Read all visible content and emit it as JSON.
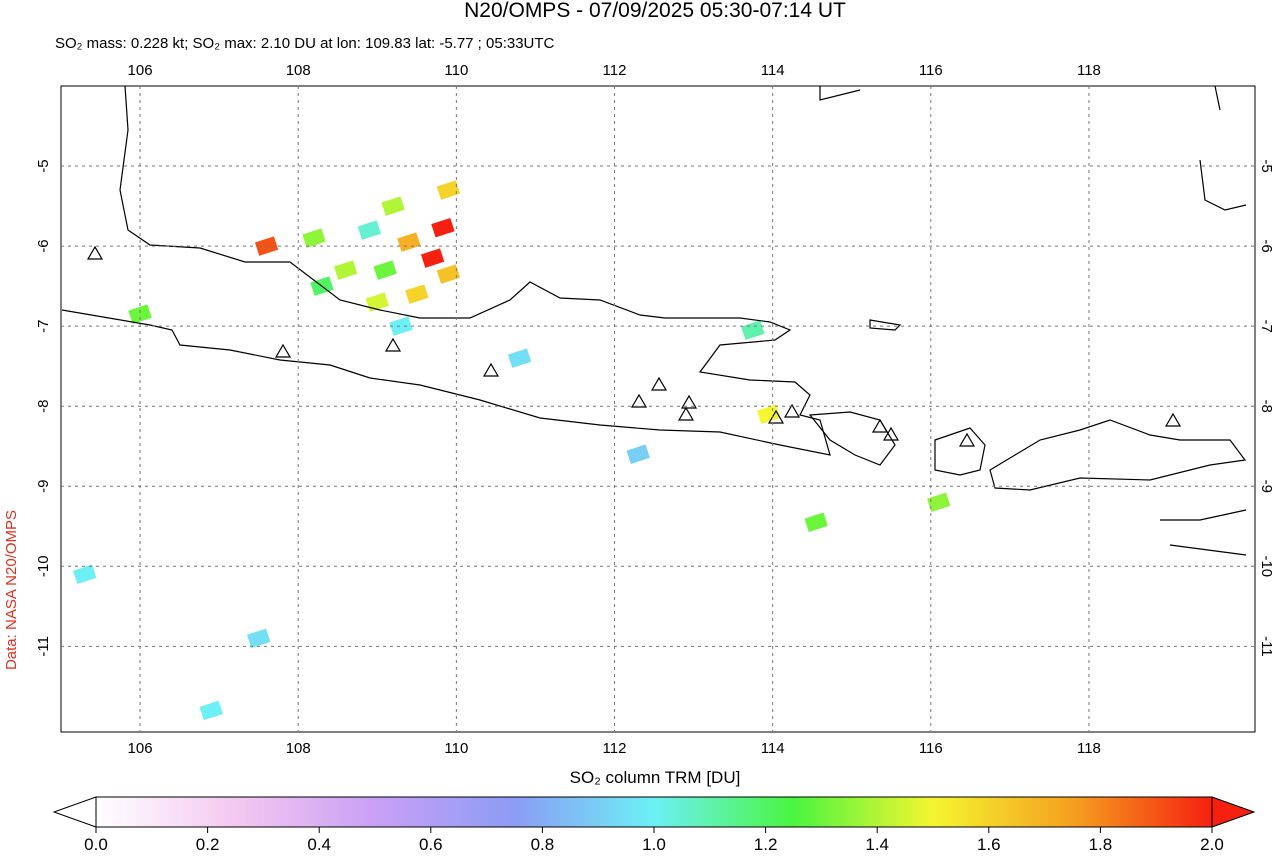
{
  "title": "N20/OMPS - 07/09/2025 05:30-07:14 UT",
  "subtitle": "SO₂ mass: 0.228 kt; SO₂ max: 2.10 DU at lon: 109.83 lat: -5.77 ; 05:33UTC",
  "credit": "Data: NASA N20/OMPS",
  "map": {
    "xlim": [
      105,
      120.1
    ],
    "ylim": [
      -12.07,
      -4
    ],
    "xticks": [
      106,
      108,
      110,
      112,
      114,
      116,
      118
    ],
    "yticks": [
      -5,
      -6,
      -7,
      -8,
      -9,
      -10,
      -11
    ],
    "cells": [
      {
        "lon": 109.83,
        "lat": -5.77,
        "value": 2.1
      },
      {
        "lon": 107.6,
        "lat": -6.0,
        "value": 1.9
      },
      {
        "lon": 109.7,
        "lat": -6.15,
        "value": 2.0
      },
      {
        "lon": 109.4,
        "lat": -5.95,
        "value": 1.7
      },
      {
        "lon": 109.9,
        "lat": -6.35,
        "value": 1.65
      },
      {
        "lon": 109.5,
        "lat": -6.6,
        "value": 1.6
      },
      {
        "lon": 109.0,
        "lat": -6.7,
        "value": 1.45
      },
      {
        "lon": 108.6,
        "lat": -6.3,
        "value": 1.4
      },
      {
        "lon": 108.2,
        "lat": -5.9,
        "value": 1.35
      },
      {
        "lon": 109.2,
        "lat": -5.5,
        "value": 1.4
      },
      {
        "lon": 109.9,
        "lat": -5.3,
        "value": 1.6
      },
      {
        "lon": 109.1,
        "lat": -6.3,
        "value": 1.3
      },
      {
        "lon": 108.9,
        "lat": -5.8,
        "value": 1.05
      },
      {
        "lon": 109.3,
        "lat": -7.0,
        "value": 1.0
      },
      {
        "lon": 108.3,
        "lat": -6.5,
        "value": 1.2
      },
      {
        "lon": 113.75,
        "lat": -7.05,
        "value": 1.1
      },
      {
        "lon": 113.95,
        "lat": -8.1,
        "value": 1.5
      },
      {
        "lon": 114.55,
        "lat": -9.45,
        "value": 1.3
      },
      {
        "lon": 116.1,
        "lat": -9.2,
        "value": 1.35
      },
      {
        "lon": 105.3,
        "lat": -10.1,
        "value": 1.0
      },
      {
        "lon": 106.9,
        "lat": -11.8,
        "value": 1.0
      },
      {
        "lon": 106.0,
        "lat": -6.85,
        "value": 1.3
      },
      {
        "lon": 110.8,
        "lat": -7.4,
        "value": 0.95
      },
      {
        "lon": 112.3,
        "lat": -8.6,
        "value": 0.9
      },
      {
        "lon": 107.5,
        "lat": -10.9,
        "value": 0.95
      }
    ]
  },
  "colorbar": {
    "label": "SO₂ column TRM [DU]",
    "lim": [
      0,
      2
    ],
    "colors": [
      "#ffffff",
      "#f4c8f0",
      "#c9a0f5",
      "#8c9cf5",
      "#6cf0f5",
      "#4af540",
      "#f5f530",
      "#f5a020",
      "#f52010"
    ],
    "ticks": [
      {
        "value": 0,
        "label": "0.0"
      },
      {
        "value": 0.2,
        "label": "0.2"
      },
      {
        "value": 0.4,
        "label": "0.4"
      },
      {
        "value": 0.6,
        "label": "0.6"
      },
      {
        "value": 0.8,
        "label": "0.8"
      },
      {
        "value": 1,
        "label": "1.0"
      },
      {
        "value": 1.2,
        "label": "1.2"
      },
      {
        "value": 1.4,
        "label": "1.4"
      },
      {
        "value": 1.6,
        "label": "1.6"
      },
      {
        "value": 1.8,
        "label": "1.8"
      },
      {
        "value": 2,
        "label": "2.0"
      }
    ]
  }
}
